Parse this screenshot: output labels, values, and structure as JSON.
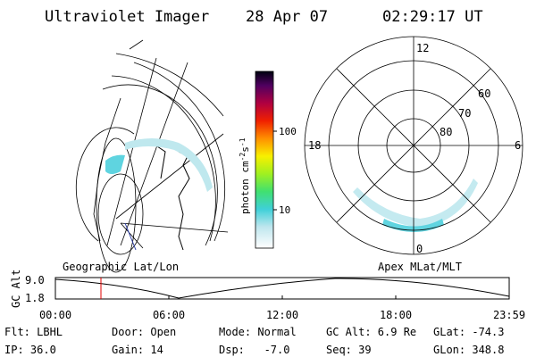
{
  "header": {
    "instrument": "Ultraviolet Imager",
    "date": "28 Apr 07",
    "time": "02:29:17 UT"
  },
  "colorbar": {
    "label": [
      "photon cm",
      "-2",
      "s",
      "-1"
    ],
    "ticks": [
      "100",
      "10"
    ]
  },
  "polar": {
    "lat_labels": [
      "80",
      "70",
      "60"
    ],
    "mlt_labels": [
      "12",
      "18",
      "6",
      "0"
    ]
  },
  "timeline": {
    "left_label": "Geographic Lat/Lon",
    "right_label": "Apex MLat/MLT",
    "y_label": "GC Alt",
    "y_ticks": [
      "9.0",
      "1.8"
    ],
    "x_ticks": [
      "00:00",
      "06:00",
      "12:00",
      "18:00",
      "23:59"
    ]
  },
  "info": [
    [
      "Flt: LBHL",
      "Door: Open",
      "Mode: Normal",
      "GC Alt: 6.9 Re",
      "GLat: -74.3"
    ],
    [
      "IP: 36.0",
      "Gain: 14",
      "Dsp:   -7.0",
      "Seq: 39",
      "GLon: 348.8"
    ]
  ]
}
